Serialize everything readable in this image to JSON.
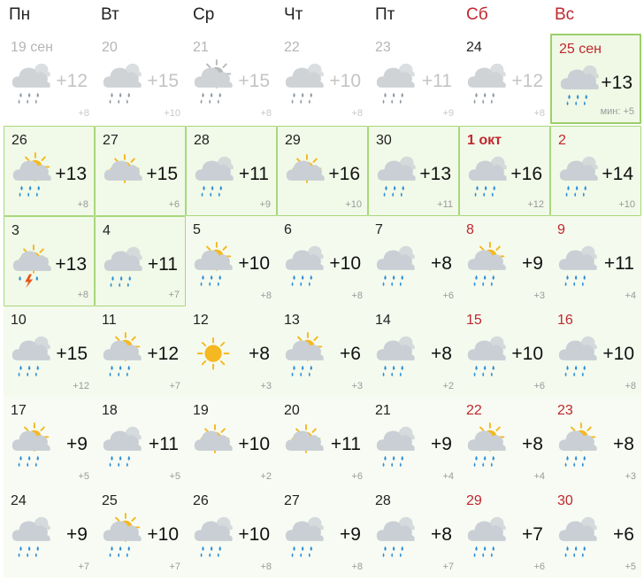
{
  "weekdays": [
    {
      "label": "Пн",
      "weekend": false
    },
    {
      "label": "Вт",
      "weekend": false
    },
    {
      "label": "Ср",
      "weekend": false
    },
    {
      "label": "Чт",
      "weekend": false
    },
    {
      "label": "Пт",
      "weekend": false
    },
    {
      "label": "Сб",
      "weekend": true
    },
    {
      "label": "Вс",
      "weekend": true
    }
  ],
  "weeks": [
    [
      {
        "day": "19 сен",
        "hi": "+12",
        "lo": "+8",
        "icon": "cloud-rain-icon",
        "state": "past"
      },
      {
        "day": "20",
        "hi": "+15",
        "lo": "+10",
        "icon": "cloud-rain-icon",
        "state": "past"
      },
      {
        "day": "21",
        "hi": "+15",
        "lo": "+8",
        "icon": "sun-cloud-rain-icon",
        "state": "past"
      },
      {
        "day": "22",
        "hi": "+10",
        "lo": "+8",
        "icon": "cloud-rain-icon",
        "state": "past"
      },
      {
        "day": "23",
        "hi": "+11",
        "lo": "+9",
        "icon": "cloud-rain-icon",
        "state": "past"
      },
      {
        "day": "24",
        "hi": "+12",
        "lo": "+8",
        "icon": "cloud-rain-icon",
        "state": "past"
      },
      {
        "day": "25 сен",
        "hi": "+13",
        "lo": "мин: +5",
        "icon": "cloud-rain-icon",
        "state": "today"
      }
    ],
    [
      {
        "day": "26",
        "hi": "+13",
        "lo": "+8",
        "icon": "sun-cloud-rain-icon",
        "state": "g1"
      },
      {
        "day": "27",
        "hi": "+15",
        "lo": "+6",
        "icon": "sun-cloud-icon",
        "state": "g1"
      },
      {
        "day": "28",
        "hi": "+11",
        "lo": "+9",
        "icon": "cloud-rain-icon",
        "state": "g1"
      },
      {
        "day": "29",
        "hi": "+16",
        "lo": "+10",
        "icon": "sun-cloud-icon",
        "state": "g1"
      },
      {
        "day": "30",
        "hi": "+13",
        "lo": "+11",
        "icon": "cloud-rain-icon",
        "state": "g1"
      },
      {
        "day": "1 окт",
        "hi": "+16",
        "lo": "+12",
        "icon": "cloud-rain-icon",
        "state": "g1"
      },
      {
        "day": "2",
        "hi": "+14",
        "lo": "+10",
        "icon": "cloud-rain-icon",
        "state": "g1"
      }
    ],
    [
      {
        "day": "3",
        "hi": "+13",
        "lo": "+8",
        "icon": "sun-cloud-storm-icon",
        "state": "g1"
      },
      {
        "day": "4",
        "hi": "+11",
        "lo": "+7",
        "icon": "cloud-rain-icon",
        "state": "g1"
      },
      {
        "day": "5",
        "hi": "+10",
        "lo": "+8",
        "icon": "sun-cloud-rain-icon",
        "state": "g2"
      },
      {
        "day": "6",
        "hi": "+10",
        "lo": "+8",
        "icon": "cloud-rain-icon",
        "state": "g2"
      },
      {
        "day": "7",
        "hi": "+8",
        "lo": "+6",
        "icon": "cloud-rain-icon",
        "state": "g2"
      },
      {
        "day": "8",
        "hi": "+9",
        "lo": "+3",
        "icon": "sun-cloud-rain-icon",
        "state": "g2"
      },
      {
        "day": "9",
        "hi": "+11",
        "lo": "+4",
        "icon": "cloud-rain-icon",
        "state": "g2"
      }
    ],
    [
      {
        "day": "10",
        "hi": "+15",
        "lo": "+12",
        "icon": "cloud-rain-icon",
        "state": "g2"
      },
      {
        "day": "11",
        "hi": "+12",
        "lo": "+7",
        "icon": "sun-cloud-rain-icon",
        "state": "g2"
      },
      {
        "day": "12",
        "hi": "+8",
        "lo": "+3",
        "icon": "sun-icon",
        "state": "g2"
      },
      {
        "day": "13",
        "hi": "+6",
        "lo": "+3",
        "icon": "sun-cloud-rain-icon",
        "state": "g2"
      },
      {
        "day": "14",
        "hi": "+8",
        "lo": "+2",
        "icon": "cloud-rain-icon",
        "state": "g2"
      },
      {
        "day": "15",
        "hi": "+10",
        "lo": "+6",
        "icon": "cloud-rain-icon",
        "state": "g2"
      },
      {
        "day": "16",
        "hi": "+10",
        "lo": "+8",
        "icon": "cloud-rain-icon",
        "state": "g2"
      }
    ],
    [
      {
        "day": "17",
        "hi": "+9",
        "lo": "+5",
        "icon": "sun-cloud-rain-icon",
        "state": "g3"
      },
      {
        "day": "18",
        "hi": "+11",
        "lo": "+5",
        "icon": "cloud-rain-icon",
        "state": "g3"
      },
      {
        "day": "19",
        "hi": "+10",
        "lo": "+2",
        "icon": "sun-cloud-icon",
        "state": "g3"
      },
      {
        "day": "20",
        "hi": "+11",
        "lo": "+6",
        "icon": "sun-cloud-icon",
        "state": "g3"
      },
      {
        "day": "21",
        "hi": "+9",
        "lo": "+4",
        "icon": "cloud-rain-icon",
        "state": "g3"
      },
      {
        "day": "22",
        "hi": "+8",
        "lo": "+4",
        "icon": "sun-cloud-rain-icon",
        "state": "g3"
      },
      {
        "day": "23",
        "hi": "+8",
        "lo": "+3",
        "icon": "sun-cloud-rain-icon",
        "state": "g3"
      }
    ],
    [
      {
        "day": "24",
        "hi": "+9",
        "lo": "+7",
        "icon": "cloud-rain-icon",
        "state": "g3"
      },
      {
        "day": "25",
        "hi": "+10",
        "lo": "+7",
        "icon": "sun-cloud-rain-icon",
        "state": "g3"
      },
      {
        "day": "26",
        "hi": "+10",
        "lo": "+8",
        "icon": "cloud-rain-icon",
        "state": "g3"
      },
      {
        "day": "27",
        "hi": "+9",
        "lo": "+8",
        "icon": "cloud-rain-icon",
        "state": "g3"
      },
      {
        "day": "28",
        "hi": "+8",
        "lo": "+7",
        "icon": "cloud-rain-icon",
        "state": "g3"
      },
      {
        "day": "29",
        "hi": "+7",
        "lo": "+6",
        "icon": "cloud-rain-icon",
        "state": "g3"
      },
      {
        "day": "30",
        "hi": "+6",
        "lo": "+5",
        "icon": "cloud-rain-icon",
        "state": "g3"
      }
    ]
  ],
  "colors": {
    "weekend": "#c0272d",
    "sun": "#f5b820",
    "cloud": "#c9cfd4",
    "rain": "#2f8fd8",
    "lightning": "#e8541c",
    "today_border": "#9ccf6a"
  }
}
